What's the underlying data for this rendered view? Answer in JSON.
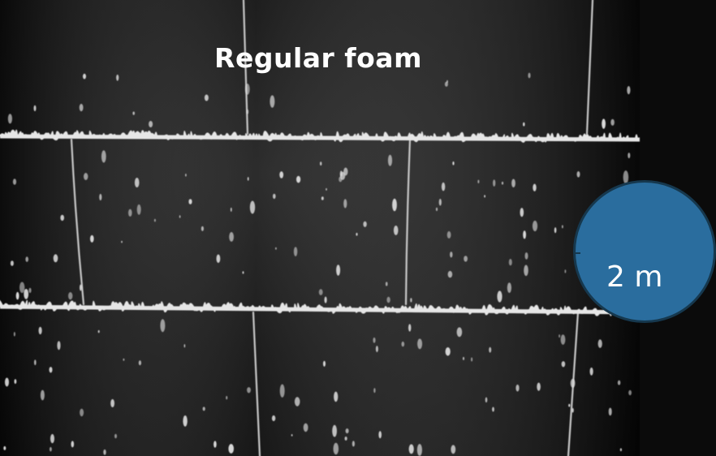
{
  "title": "Regular foam",
  "badge": {
    "text": "2 m",
    "color": "#2a6d9e"
  },
  "colors": {
    "background": "#0b0b0b",
    "foam": "#e8e8e8",
    "title_text": "#ffffff"
  }
}
